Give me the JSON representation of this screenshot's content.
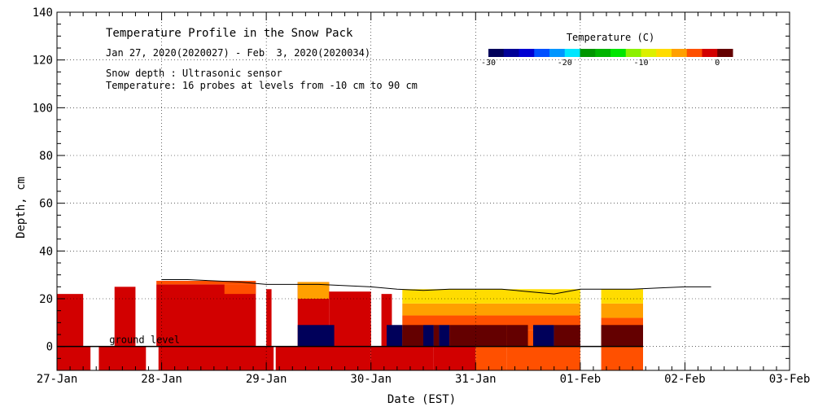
{
  "chart_data": {
    "type": "heatmap",
    "title": "Temperature Profile in the Snow Pack",
    "subtitle": "Jan 27, 2020(2020027) - Feb  3, 2020(2020034)",
    "note1": "Snow depth : Ultrasonic sensor",
    "note2": "Temperature: 16 probes at levels from -10 cm to 90 cm",
    "xlabel": "Date (EST)",
    "ylabel": "Depth, cm",
    "ground_label": "ground level",
    "xlim": [
      0,
      7
    ],
    "ylim": [
      -10,
      140
    ],
    "x_ticks": [
      "27-Jan",
      "28-Jan",
      "29-Jan",
      "30-Jan",
      "31-Jan",
      "01-Feb",
      "02-Feb",
      "03-Feb"
    ],
    "y_ticks": [
      0,
      20,
      40,
      60,
      80,
      100,
      120,
      140
    ],
    "grid": true,
    "colorbar": {
      "title": "Temperature (C)",
      "ticks": [
        -30,
        -20,
        -10,
        0
      ],
      "range": [
        -30,
        2
      ],
      "colors": [
        "#00005a",
        "#000096",
        "#0000d2",
        "#0050ff",
        "#0096ff",
        "#00e6ff",
        "#009600",
        "#00b400",
        "#00e600",
        "#8cf000",
        "#dcf000",
        "#ffdc00",
        "#ffa000",
        "#ff5000",
        "#d20000",
        "#640000"
      ]
    },
    "snow_depth": {
      "x": [
        1.0,
        1.25,
        1.5,
        1.75,
        2.0,
        2.5,
        3.0,
        3.25,
        3.5,
        3.75,
        4.0,
        4.25,
        4.5,
        4.75,
        5.0,
        5.25,
        5.5,
        5.75,
        6.0,
        6.25
      ],
      "y": [
        28,
        28,
        27.5,
        27,
        26,
        26,
        25,
        24,
        23.5,
        24,
        24,
        24,
        23,
        22,
        24,
        24,
        24,
        24.5,
        25,
        25
      ]
    },
    "temperature_blocks": [
      {
        "x": [
          0.0,
          0.32
        ],
        "y": [
          -10,
          0
        ],
        "t": -1
      },
      {
        "x": [
          0.4,
          0.85
        ],
        "y": [
          -10,
          0
        ],
        "t": -1
      },
      {
        "x": [
          0.97,
          2.07
        ],
        "y": [
          -10,
          0
        ],
        "t": -1
      },
      {
        "x": [
          2.09,
          3.0
        ],
        "y": [
          -10,
          0
        ],
        "t": -1
      },
      {
        "x": [
          3.0,
          3.6
        ],
        "y": [
          -10,
          0
        ],
        "t": -1
      },
      {
        "x": [
          3.6,
          4.0
        ],
        "y": [
          -10,
          0
        ],
        "t": -1.5
      },
      {
        "x": [
          4.0,
          4.3
        ],
        "y": [
          -10,
          0
        ],
        "t": -2.5
      },
      {
        "x": [
          4.3,
          5.0
        ],
        "y": [
          -10,
          0
        ],
        "t": -3
      },
      {
        "x": [
          5.2,
          5.6
        ],
        "y": [
          -10,
          0
        ],
        "t": -3
      },
      {
        "x": [
          0.0,
          0.25
        ],
        "y": [
          0,
          22
        ],
        "t": -1
      },
      {
        "x": [
          0.1,
          0.25
        ],
        "y": [
          0,
          20
        ],
        "t": -1
      },
      {
        "x": [
          0.55,
          0.75
        ],
        "y": [
          0,
          25
        ],
        "t": -1
      },
      {
        "x": [
          0.95,
          1.9
        ],
        "y": [
          0,
          26
        ],
        "t": -1
      },
      {
        "x": [
          0.95,
          1.9
        ],
        "y": [
          26,
          27.5
        ],
        "t": -2.5
      },
      {
        "x": [
          1.6,
          1.9
        ],
        "y": [
          22,
          26
        ],
        "t": -3.5
      },
      {
        "x": [
          2.0,
          2.05
        ],
        "y": [
          0,
          24
        ],
        "t": -1
      },
      {
        "x": [
          2.3,
          2.6
        ],
        "y": [
          0,
          27
        ],
        "t": -1
      },
      {
        "x": [
          2.3,
          2.6
        ],
        "y": [
          20,
          27
        ],
        "t": -6
      },
      {
        "x": [
          2.6,
          3.0
        ],
        "y": [
          0,
          23
        ],
        "t": -1
      },
      {
        "x": [
          3.1,
          3.2
        ],
        "y": [
          0,
          22
        ],
        "t": -1
      },
      {
        "x": [
          3.15,
          5.0
        ],
        "y": [
          0,
          7
        ],
        "t": -2.5
      },
      {
        "x": [
          3.3,
          5.0
        ],
        "y": [
          7,
          13
        ],
        "t": -3.5
      },
      {
        "x": [
          3.3,
          5.0
        ],
        "y": [
          13,
          18
        ],
        "t": -5
      },
      {
        "x": [
          3.3,
          5.0
        ],
        "y": [
          18,
          24
        ],
        "t": -8
      },
      {
        "x": [
          5.2,
          5.6
        ],
        "y": [
          0,
          12
        ],
        "t": -3
      },
      {
        "x": [
          5.2,
          5.6
        ],
        "y": [
          12,
          18
        ],
        "t": -5
      },
      {
        "x": [
          5.2,
          5.6
        ],
        "y": [
          18,
          24
        ],
        "t": -8
      },
      {
        "x": [
          2.3,
          2.65
        ],
        "y": [
          0,
          9
        ],
        "t": -30
      },
      {
        "x": [
          2.65,
          3.0
        ],
        "y": [
          0,
          9
        ],
        "t": -1
      },
      {
        "x": [
          3.15,
          3.3
        ],
        "y": [
          0,
          9
        ],
        "t": -30
      },
      {
        "x": [
          3.3,
          3.5
        ],
        "y": [
          0,
          9
        ],
        "t": 1
      },
      {
        "x": [
          3.5,
          3.6
        ],
        "y": [
          0,
          9
        ],
        "t": -30
      },
      {
        "x": [
          3.6,
          3.65
        ],
        "y": [
          0,
          9
        ],
        "t": 1
      },
      {
        "x": [
          3.65,
          3.75
        ],
        "y": [
          0,
          9
        ],
        "t": -30
      },
      {
        "x": [
          3.75,
          4.3
        ],
        "y": [
          0,
          9
        ],
        "t": 1
      },
      {
        "x": [
          4.3,
          4.5
        ],
        "y": [
          0,
          9
        ],
        "t": 1
      },
      {
        "x": [
          4.55,
          4.75
        ],
        "y": [
          0,
          9
        ],
        "t": -30
      },
      {
        "x": [
          4.75,
          5.0
        ],
        "y": [
          0,
          9
        ],
        "t": 1
      },
      {
        "x": [
          5.2,
          5.6
        ],
        "y": [
          0,
          9
        ],
        "t": 1
      }
    ]
  }
}
